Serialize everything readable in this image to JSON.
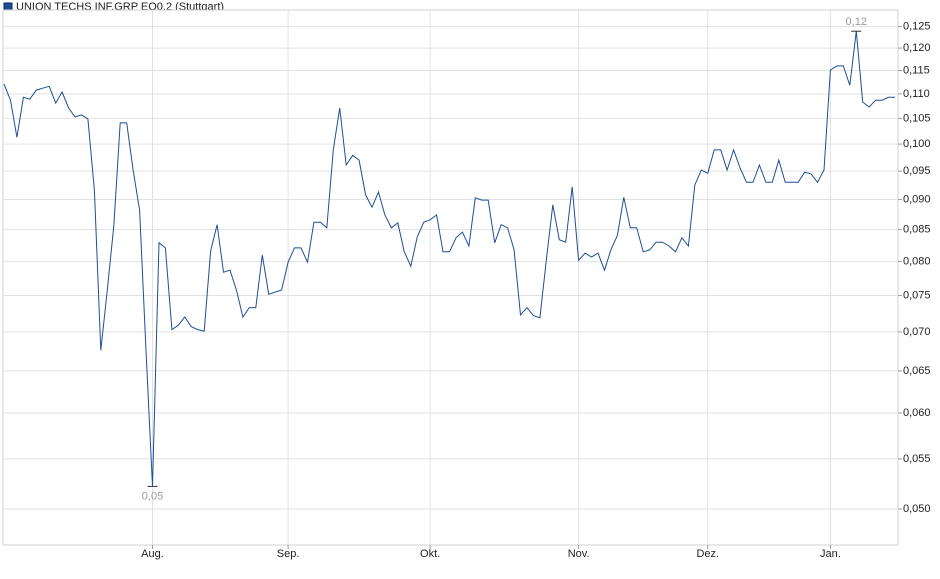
{
  "chart_data": {
    "type": "line",
    "title": "UNION TECHS INF.GRP EO0,2 (Stuttgart)",
    "series": [
      {
        "name": "UNION TECHS INF.GRP EO0,2 (Stuttgart)",
        "color": "#1f4e96",
        "values": [
          0.1121,
          0.1087,
          0.1013,
          0.1093,
          0.1089,
          0.1108,
          0.1112,
          0.1116,
          0.1081,
          0.1104,
          0.1071,
          0.1053,
          0.1057,
          0.1049,
          0.0916,
          0.0676,
          0.0758,
          0.0856,
          0.1041,
          0.1041,
          0.0952,
          0.0882,
          0.0676,
          0.0522,
          0.0829,
          0.0821,
          0.0703,
          0.0709,
          0.072,
          0.0707,
          0.0703,
          0.0701,
          0.0816,
          0.0858,
          0.0784,
          0.0787,
          0.0758,
          0.072,
          0.0733,
          0.0733,
          0.081,
          0.0752,
          0.0755,
          0.0758,
          0.0799,
          0.0821,
          0.0821,
          0.0799,
          0.0862,
          0.0862,
          0.0853,
          0.0989,
          0.1071,
          0.0961,
          0.0979,
          0.097,
          0.0908,
          0.0887,
          0.0913,
          0.0874,
          0.0853,
          0.0861,
          0.0815,
          0.0793,
          0.0838,
          0.0862,
          0.0866,
          0.0874,
          0.0815,
          0.0815,
          0.0837,
          0.0846,
          0.0824,
          0.0903,
          0.0899,
          0.0899,
          0.0829,
          0.0858,
          0.0853,
          0.0818,
          0.0723,
          0.0733,
          0.0722,
          0.0719,
          0.0802,
          0.0891,
          0.0834,
          0.083,
          0.0922,
          0.0802,
          0.0813,
          0.0807,
          0.0813,
          0.0787,
          0.0818,
          0.0841,
          0.0904,
          0.0853,
          0.0853,
          0.0815,
          0.0818,
          0.083,
          0.083,
          0.0824,
          0.0815,
          0.0837,
          0.0824,
          0.0925,
          0.0952,
          0.0946,
          0.0989,
          0.0989,
          0.0952,
          0.0989,
          0.0956,
          0.093,
          0.093,
          0.0961,
          0.093,
          0.093,
          0.097,
          0.093,
          0.093,
          0.093,
          0.0948,
          0.0945,
          0.093,
          0.0952,
          0.1151,
          0.116,
          0.116,
          0.1118,
          0.1239,
          0.1083,
          0.1073,
          0.1087,
          0.1087,
          0.1093,
          0.1093
        ]
      }
    ],
    "xlim": [
      0,
      138
    ],
    "xticks": [
      {
        "value": 23,
        "label": "Aug."
      },
      {
        "value": 44,
        "label": "Sep."
      },
      {
        "value": 66,
        "label": "Okt."
      },
      {
        "value": 89,
        "label": "Nov."
      },
      {
        "value": 109,
        "label": "Dez."
      },
      {
        "value": 128,
        "label": "Jan."
      }
    ],
    "ylim": [
      0.0467,
      0.129
    ],
    "log_y": true,
    "yticks": [
      {
        "value": 0.05,
        "label": "0,050"
      },
      {
        "value": 0.055,
        "label": "0,055"
      },
      {
        "value": 0.06,
        "label": "0,060"
      },
      {
        "value": 0.065,
        "label": "0,065"
      },
      {
        "value": 0.07,
        "label": "0,070"
      },
      {
        "value": 0.075,
        "label": "0,075"
      },
      {
        "value": 0.08,
        "label": "0,080"
      },
      {
        "value": 0.085,
        "label": "0,085"
      },
      {
        "value": 0.09,
        "label": "0,090"
      },
      {
        "value": 0.095,
        "label": "0,095"
      },
      {
        "value": 0.1,
        "label": "0,100"
      },
      {
        "value": 0.105,
        "label": "0,105"
      },
      {
        "value": 0.11,
        "label": "0,110"
      },
      {
        "value": 0.115,
        "label": "0,115"
      },
      {
        "value": 0.12,
        "label": "0,120"
      },
      {
        "value": 0.125,
        "label": "0,125"
      }
    ],
    "grid": true,
    "annotations": {
      "max": "0,12",
      "min": "0,05"
    }
  }
}
